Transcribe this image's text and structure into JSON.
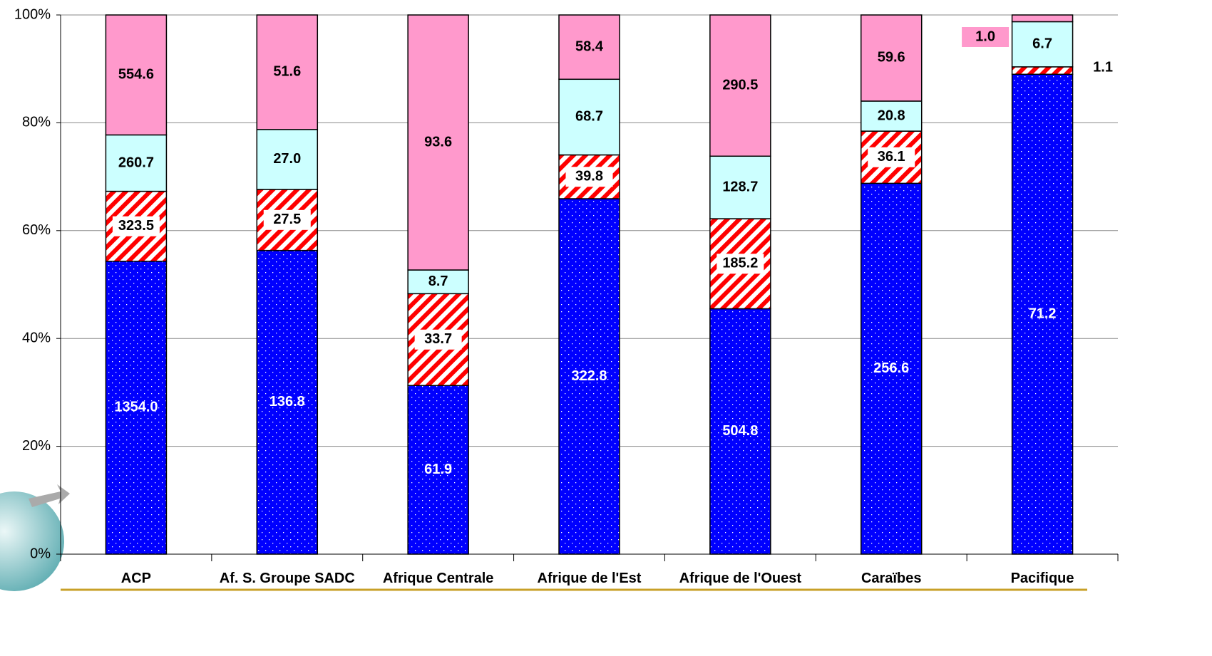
{
  "chart_data": {
    "type": "stacked_bar_100",
    "categories": [
      "ACP",
      "Af. S. Groupe SADC",
      "Afrique Centrale",
      "Afrique de l'Est",
      "Afrique de l'Ouest",
      "Caraïbes",
      "Pacifique"
    ],
    "series": [
      {
        "color": "#0000ff",
        "values": [
          1354.0,
          136.8,
          61.9,
          322.8,
          504.8,
          256.6,
          71.2
        ],
        "value_labels": [
          "1354.0",
          "136.8",
          "61.9",
          "322.8",
          "504.8",
          "256.6",
          "71.2"
        ]
      },
      {
        "color": "#ff0000",
        "values": [
          323.5,
          27.5,
          33.7,
          39.8,
          185.2,
          36.1,
          1.1
        ],
        "value_labels": [
          "323.5",
          "27.5",
          "33.7",
          "39.8",
          "185.2",
          "36.1",
          "1.1"
        ]
      },
      {
        "color": "#ccffff",
        "values": [
          260.7,
          27.0,
          8.7,
          68.7,
          128.7,
          20.8,
          6.7
        ],
        "value_labels": [
          "260.7",
          "27.0",
          "8.7",
          "68.7",
          "128.7",
          "20.8",
          "6.7"
        ]
      },
      {
        "color": "#ff99cc",
        "values": [
          554.6,
          51.6,
          93.6,
          58.4,
          290.5,
          59.6,
          1.0
        ],
        "value_labels": [
          "554.6",
          "51.6",
          "93.6",
          "58.4",
          "290.5",
          "59.6",
          "1.0"
        ]
      }
    ],
    "ylim": [
      0,
      100
    ],
    "yticks": [
      {
        "value": 0,
        "label": "0%"
      },
      {
        "value": 20,
        "label": "20%"
      },
      {
        "value": 40,
        "label": "40%"
      },
      {
        "value": 60,
        "label": "60%"
      },
      {
        "value": 80,
        "label": "80%"
      },
      {
        "value": 100,
        "label": "100%"
      }
    ],
    "grid": true
  }
}
